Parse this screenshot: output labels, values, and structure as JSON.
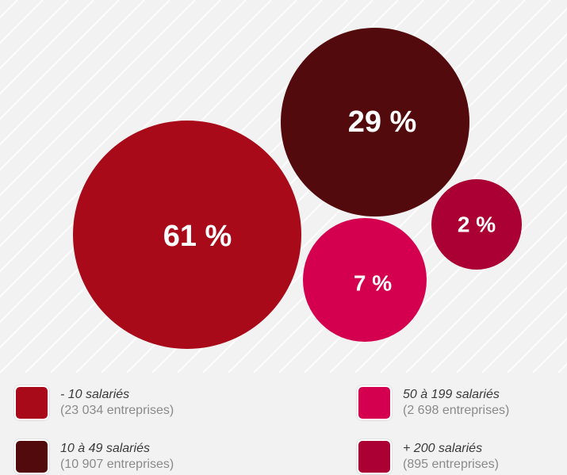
{
  "chart_data": {
    "type": "bubble",
    "series": [
      {
        "label": "61 %",
        "value": 61,
        "legend_title": "- 10 salariés",
        "legend_sub": "(23 034 entreprises)",
        "color": "#a90a1a"
      },
      {
        "label": "29 %",
        "value": 29,
        "legend_title": "10 à 49 salariés",
        "legend_sub": "(10 907 entreprises)",
        "color": "#520a0c"
      },
      {
        "label": "7 %",
        "value": 7,
        "legend_title": "50 à 199 salariés",
        "legend_sub": "(2 698 entreprises)",
        "color": "#d4004f"
      },
      {
        "label": "2 %",
        "value": 2,
        "legend_title": "+ 200 salariés",
        "legend_sub": "(895 entreprises)",
        "color": "#aa0034"
      }
    ],
    "legend_placement": "bottom",
    "grid": false
  },
  "colors": {
    "background": "#f2f2f2",
    "stripes": "#ffffff",
    "label_text": "#ffffff",
    "legend_title": "#3a3a3a",
    "legend_sub": "#8a8a8a"
  }
}
